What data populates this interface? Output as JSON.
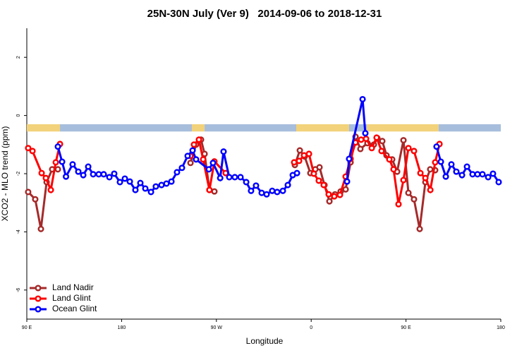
{
  "chart_data": {
    "type": "line",
    "title": "25N-30N July (Ver 9)   2014-09-06 to 2018-12-31",
    "x_label": "Longitude",
    "y_label": "XCO2 - MLO trend (ppm)",
    "xlim": [
      90,
      540
    ],
    "xticks": [
      {
        "value": 90,
        "label": "90 E"
      },
      {
        "value": 180,
        "label": "180"
      },
      {
        "value": 270,
        "label": "90 W"
      },
      {
        "value": 360,
        "label": "0"
      },
      {
        "value": 450,
        "label": "90 E"
      },
      {
        "value": 540,
        "label": "180"
      }
    ],
    "ylim": [
      -7,
      3
    ],
    "yticks": [
      -6,
      -4,
      -2,
      0,
      2
    ],
    "legend": "bottom-left",
    "surface_band": {
      "range": [
        -0.55,
        -0.3
      ],
      "segments": [
        {
          "x": [
            90,
            121.5
          ],
          "color": "#F2D27A"
        },
        {
          "x": [
            121.5,
            246.7
          ],
          "color": "#A7BDDC"
        },
        {
          "x": [
            246.7,
            258.8
          ],
          "color": "#F2D27A"
        },
        {
          "x": [
            258.8,
            345.8
          ],
          "color": "#A7BDDC"
        },
        {
          "x": [
            345.8,
            396
          ],
          "color": "#F2D27A"
        },
        {
          "x": [
            396,
            412.8
          ],
          "color": "#A7BDDC"
        },
        {
          "x": [
            412.8,
            481
          ],
          "color": "#F2D27A"
        },
        {
          "x": [
            481,
            540
          ],
          "color": "#A7BDDC"
        }
      ]
    },
    "series": [
      {
        "name": "Land Nadir",
        "color": "#A52A2A",
        "x": [
          91.3,
          98,
          103.4,
          108.8,
          114.1,
          119.5,
          null,
          245.4,
          250.7,
          255.4,
          258.8,
          263.4,
          268.1,
          null,
          344.5,
          349.2,
          353.8,
          359.2,
          363.9,
          367.9,
          372.6,
          377.3,
          382.6,
          388,
          392.7,
          397.4,
          402.1,
          406.7,
          413.4,
          419.5,
          422.8,
          427.5,
          431.5,
          436.9,
          441.6,
          447.6,
          452.3,
          457.6,
          463,
          468.4,
          473,
          477.7
        ],
        "values": [
          -2.63,
          -2.88,
          -3.9,
          -2.29,
          -1.85,
          -1.85,
          null,
          -1.63,
          -1.0,
          -0.83,
          -1.32,
          -2.56,
          -2.61,
          null,
          -1.7,
          -1.2,
          -1.41,
          -1.98,
          -1.85,
          -1.78,
          -2.39,
          -2.95,
          -2.71,
          -2.61,
          -2.54,
          -1.61,
          -0.73,
          -1.15,
          -0.95,
          -1.0,
          -0.78,
          -0.88,
          -1.37,
          -1.51,
          -1.93,
          -0.85,
          -2.66,
          -2.88,
          -3.9,
          -2.29,
          -1.85,
          -1.88
        ]
      },
      {
        "name": "Land Glint",
        "color": "#FF0000",
        "x": [
          91.3,
          95.4,
          104.1,
          108.1,
          112.8,
          117.5,
          121.5,
          null,
          245.4,
          248.7,
          253.4,
          257.4,
          263.4,
          268.1,
          278.8,
          null,
          343.8,
          348.5,
          353.2,
          357.9,
          362.5,
          367.2,
          371.9,
          376.6,
          381.9,
          387.3,
          392.7,
          397.4,
          402.1,
          407.4,
          412.1,
          417.5,
          422.1,
          426.8,
          434.2,
          438.2,
          442.9,
          447.6,
          452.3,
          457.6,
          463.7,
          468.4,
          473.1,
          477.7,
          481.8
        ],
        "values": [
          -1.12,
          -1.22,
          -1.98,
          -2.15,
          -2.56,
          -1.61,
          -0.98,
          null,
          -1.39,
          -1.0,
          -0.83,
          -1.51,
          -2.56,
          -1.58,
          -1.98,
          null,
          -1.61,
          -1.56,
          -1.37,
          -1.32,
          -2.0,
          -2.24,
          -2.39,
          -2.71,
          -2.78,
          -2.73,
          -2.1,
          -1.49,
          -0.93,
          -0.83,
          -0.8,
          -1.12,
          -0.76,
          -1.22,
          -1.51,
          -1.85,
          -3.05,
          -2.22,
          -1.12,
          -1.22,
          -1.98,
          -2.15,
          -2.56,
          -1.61,
          -0.98
        ]
      },
      {
        "name": "Ocean Glint",
        "color": "#0000FF",
        "x": [
          119.5,
          123.5,
          127.2,
          133.5,
          138.9,
          143.6,
          148.3,
          153,
          158.3,
          163,
          168.4,
          173,
          178.4,
          183.1,
          187.8,
          193.1,
          197.8,
          202.5,
          207.9,
          212.5,
          217.9,
          222.6,
          227.3,
          232.6,
          237.3,
          242.7,
          247.4,
          250.7,
          262.8,
          266.8,
          273.6,
          276.8,
          282.2,
          287.5,
          292.9,
          298.3,
          302.9,
          307.6,
          313,
          317.7,
          323,
          327.7,
          333.1,
          337.8,
          342.5,
          346.5,
          null,
          394,
          396,
          408.8,
          411.4,
          null,
          479,
          483.1,
          487.8,
          493.1,
          497.8,
          503.2,
          507.9,
          513.2,
          517.9,
          522.6,
          528,
          532.6,
          538
        ],
        "values": [
          -1.07,
          -1.59,
          -2.1,
          -1.68,
          -1.93,
          -2.05,
          -1.76,
          -2.02,
          -2.02,
          -2.02,
          -2.12,
          -2.0,
          -2.29,
          -2.17,
          -2.27,
          -2.56,
          -2.32,
          -2.51,
          -2.63,
          -2.44,
          -2.39,
          -2.34,
          -2.27,
          -1.95,
          -1.8,
          -1.39,
          -1.2,
          -1.51,
          -1.85,
          -1.63,
          -2.15,
          -1.24,
          -2.12,
          -2.12,
          -2.12,
          -2.29,
          -2.59,
          -2.41,
          -2.66,
          -2.71,
          -2.59,
          -2.63,
          -2.59,
          -2.39,
          -2.05,
          -1.98,
          null,
          -2.27,
          -1.49,
          0.56,
          -0.61,
          null,
          -1.07,
          -1.59,
          -2.1,
          -1.68,
          -1.93,
          -2.05,
          -1.76,
          -2.02,
          -2.02,
          -2.02,
          -2.12,
          -2.0,
          -2.29
        ]
      }
    ]
  }
}
